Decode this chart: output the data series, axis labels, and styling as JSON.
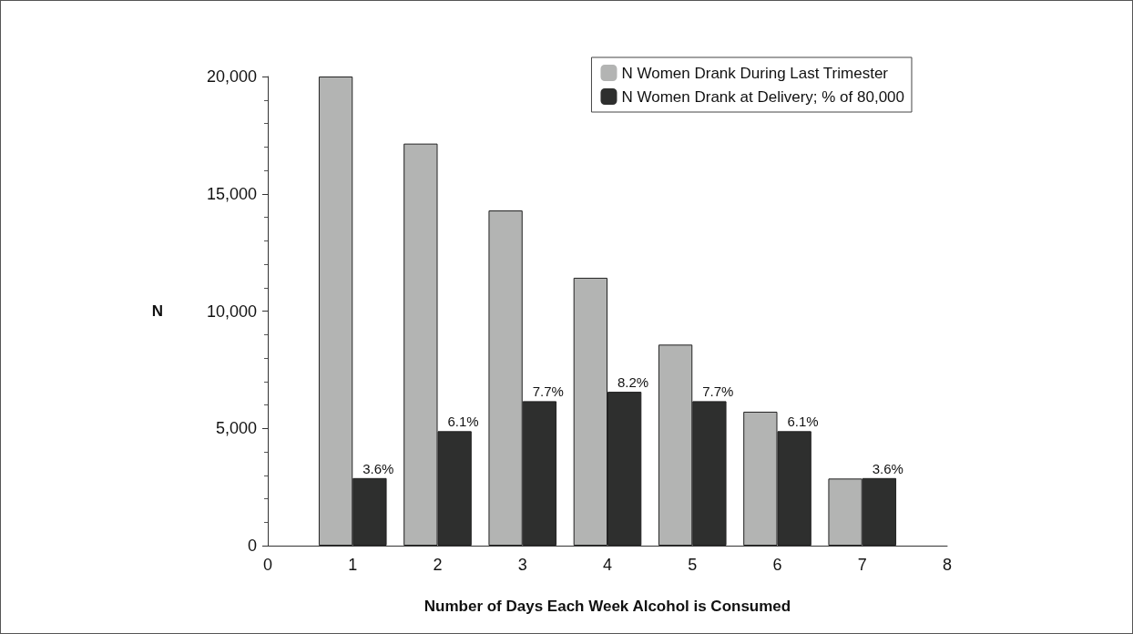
{
  "chart_data": {
    "type": "bar",
    "xlabel": "Number of Days Each Week Alcohol is Consumed",
    "ylabel": "N",
    "x": [
      1,
      2,
      3,
      4,
      5,
      6,
      7
    ],
    "series": [
      {
        "name": "N Women Drank During Last Trimester",
        "color": "#b3b4b3",
        "values": [
          20000,
          17140,
          14290,
          11420,
          8570,
          5710,
          2860
        ]
      },
      {
        "name": "N Women Drank at Delivery; % of 80,000",
        "color": "#2e2f2e",
        "values": [
          2880,
          4880,
          6160,
          6560,
          6160,
          4880,
          2880
        ]
      }
    ],
    "annotations": [
      {
        "text": "3.6%",
        "x": 1.2,
        "y": 2880
      },
      {
        "text": "6.1%",
        "x": 2.2,
        "y": 4880
      },
      {
        "text": "7.7%",
        "x": 3.2,
        "y": 6160
      },
      {
        "text": "8.2%",
        "x": 4.2,
        "y": 6560
      },
      {
        "text": "7.7%",
        "x": 5.2,
        "y": 6160
      },
      {
        "text": "6.1%",
        "x": 6.2,
        "y": 4880
      },
      {
        "text": "3.6%",
        "x": 7.2,
        "y": 2880
      }
    ],
    "xlim": [
      0,
      8
    ],
    "xticks": [
      0,
      1,
      2,
      3,
      4,
      5,
      6,
      7,
      8
    ],
    "ylim": [
      0,
      20000
    ],
    "yticks": [
      0,
      {
        "value": 5000,
        "label": "5,000"
      },
      {
        "value": 10000,
        "label": "10,000"
      },
      {
        "value": 15000,
        "label": "15,000"
      },
      {
        "value": 20000,
        "label": "20,000"
      }
    ],
    "grid": false,
    "legend": "top right"
  }
}
